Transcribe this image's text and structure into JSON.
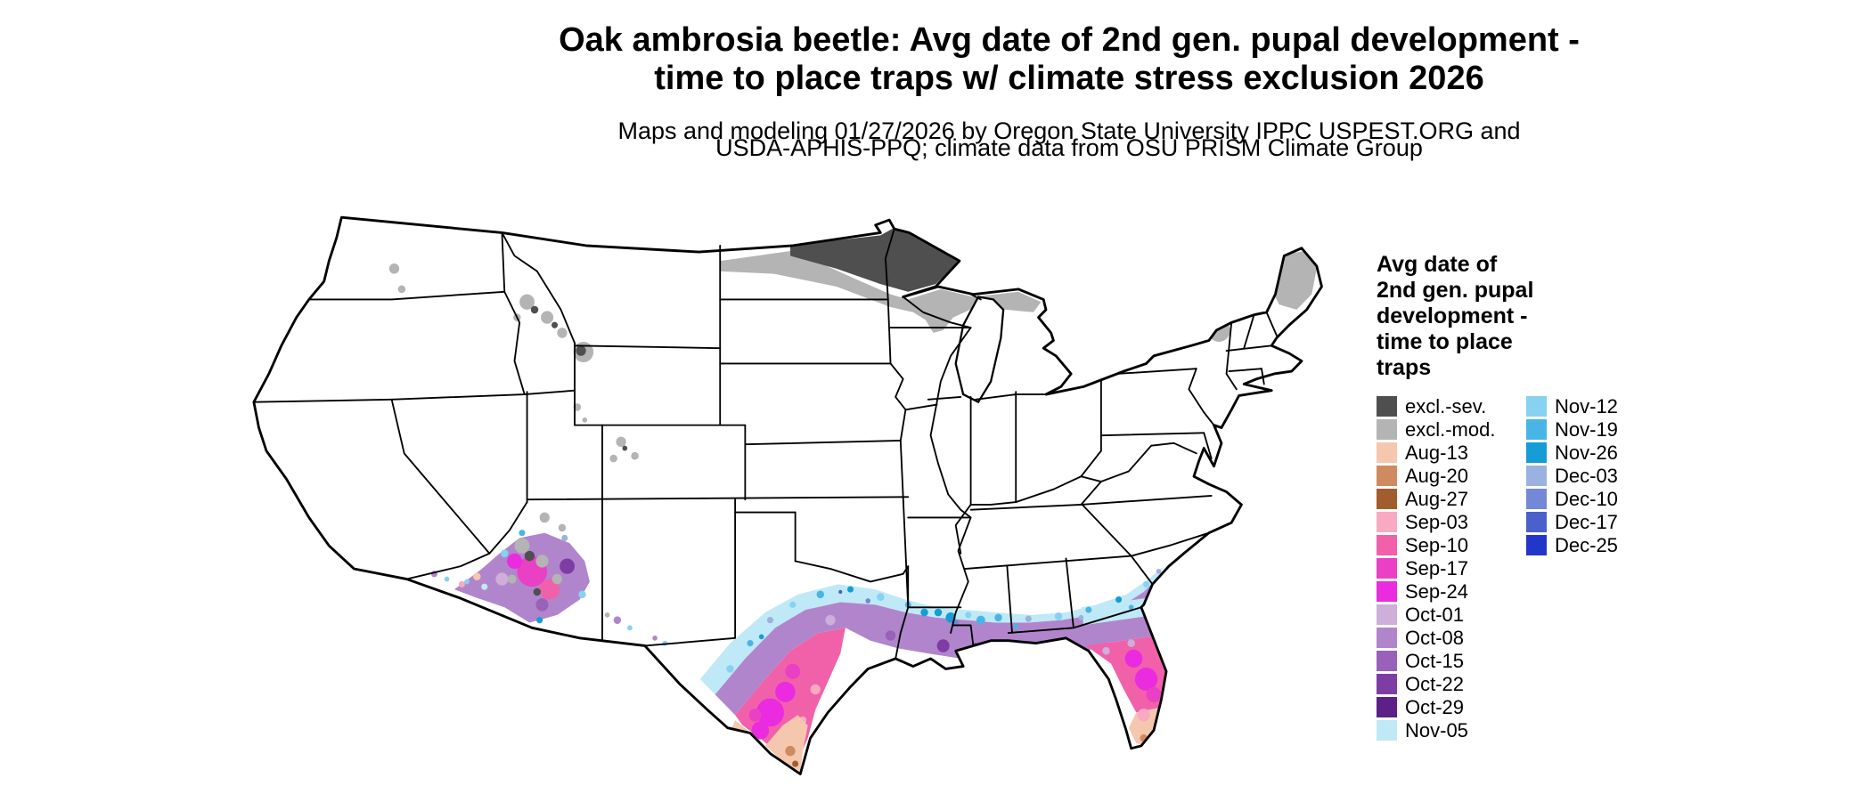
{
  "header": {
    "title_line1": "Oak ambrosia beetle: Avg date of 2nd gen. pupal development -",
    "title_line2": "time to place traps w/ climate stress exclusion 2026",
    "subtitle_line1": "Maps and modeling 01/27/2026 by Oregon State University IPPC USPEST.ORG and",
    "subtitle_line2": "USDA-APHIS-PPQ; climate data from OSU PRISM Climate Group"
  },
  "legend": {
    "title_lines": [
      "Avg date of",
      "2nd gen. pupal",
      "development -",
      "time to place",
      "traps"
    ],
    "column1": [
      {
        "label": "excl.-sev.",
        "key": "excl_sev"
      },
      {
        "label": "excl.-mod.",
        "key": "excl_mod"
      },
      {
        "label": "Aug-13",
        "key": "aug13"
      },
      {
        "label": "Aug-20",
        "key": "aug20"
      },
      {
        "label": "Aug-27",
        "key": "aug27"
      },
      {
        "label": "Sep-03",
        "key": "sep03"
      },
      {
        "label": "Sep-10",
        "key": "sep10"
      },
      {
        "label": "Sep-17",
        "key": "sep17"
      },
      {
        "label": "Sep-24",
        "key": "sep24"
      },
      {
        "label": "Oct-01",
        "key": "oct01"
      },
      {
        "label": "Oct-08",
        "key": "oct08"
      },
      {
        "label": "Oct-15",
        "key": "oct15"
      },
      {
        "label": "Oct-22",
        "key": "oct22"
      },
      {
        "label": "Oct-29",
        "key": "oct29"
      },
      {
        "label": "Nov-05",
        "key": "nov05"
      }
    ],
    "column2": [
      {
        "label": "Nov-12",
        "key": "nov12"
      },
      {
        "label": "Nov-19",
        "key": "nov19"
      },
      {
        "label": "Nov-26",
        "key": "nov26"
      },
      {
        "label": "Dec-03",
        "key": "dec03"
      },
      {
        "label": "Dec-10",
        "key": "dec10"
      },
      {
        "label": "Dec-17",
        "key": "dec17"
      },
      {
        "label": "Dec-25",
        "key": "dec25"
      }
    ]
  },
  "palette": {
    "excl_sev": "#4f4f4f",
    "excl_mod": "#b4b4b4",
    "aug13": "#f4c7ae",
    "aug20": "#d08a60",
    "aug27": "#a15d2c",
    "sep03": "#f9a9c2",
    "sep10": "#f161aa",
    "sep17": "#ea40c4",
    "sep24": "#ea2bdf",
    "oct01": "#cdafd9",
    "oct08": "#b185cc",
    "oct15": "#9a61b9",
    "oct22": "#7d3da4",
    "oct29": "#5c2087",
    "nov05": "#bfe9f6",
    "nov12": "#86d2f0",
    "nov19": "#48b5e6",
    "nov26": "#169cd6",
    "dec03": "#9bb1e0",
    "dec10": "#7389d6",
    "dec17": "#4b60ca",
    "dec25": "#2237c7",
    "border": "#000000",
    "land": "#ffffff"
  },
  "map": {
    "region_label": "Contiguous United States"
  }
}
